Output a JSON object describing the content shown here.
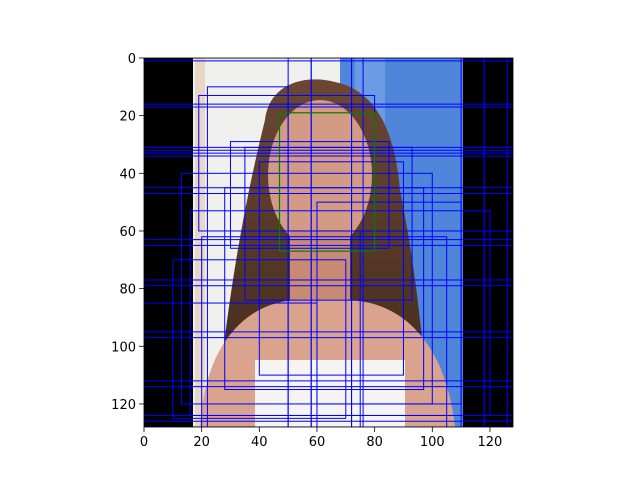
{
  "chart_data": {
    "type": "image",
    "title": "",
    "xlabel": "",
    "ylabel": "",
    "xlim": [
      0,
      128
    ],
    "ylim": [
      128,
      0
    ],
    "y_inverted": true,
    "x_ticks": [
      0,
      20,
      40,
      60,
      80,
      100,
      120
    ],
    "y_ticks": [
      0,
      20,
      40,
      60,
      80,
      100,
      120
    ],
    "grid": false,
    "legend": "none",
    "image": {
      "content": "cropped portrait photo of a woman with long brown hair against a blue and white background, with black padding columns on the left and right",
      "photo_x_range": [
        17,
        110
      ],
      "padding_color": "#000000",
      "background_colors": [
        "#f2f2f2",
        "#4f86d9"
      ],
      "hair_color": "#5a3a26",
      "skin_color": "#d49a84"
    },
    "overlay_boxes": {
      "blue_box_color": "#0000ff",
      "green_box_color": "#008000",
      "green_box": {
        "x": [
          47,
          80
        ],
        "y": [
          19,
          67
        ]
      },
      "blue_boxes": [
        {
          "x": [
            0,
            128
          ],
          "y": [
            0,
            1
          ]
        },
        {
          "x": [
            0,
            128
          ],
          "y": [
            16,
            17
          ]
        },
        {
          "x": [
            0,
            128
          ],
          "y": [
            31,
            33
          ]
        },
        {
          "x": [
            0,
            128
          ],
          "y": [
            32,
            34
          ]
        },
        {
          "x": [
            0,
            128
          ],
          "y": [
            45,
            47
          ]
        },
        {
          "x": [
            0,
            128
          ],
          "y": [
            63,
            65
          ]
        },
        {
          "x": [
            0,
            128
          ],
          "y": [
            77,
            79
          ]
        },
        {
          "x": [
            0,
            128
          ],
          "y": [
            95,
            97
          ]
        },
        {
          "x": [
            0,
            128
          ],
          "y": [
            112,
            114
          ]
        },
        {
          "x": [
            0,
            128
          ],
          "y": [
            124,
            126
          ]
        },
        {
          "x": [
            19,
            80
          ],
          "y": [
            13,
            60
          ]
        },
        {
          "x": [
            30,
            85
          ],
          "y": [
            29,
            66
          ]
        },
        {
          "x": [
            35,
            93
          ],
          "y": [
            31,
            84
          ]
        },
        {
          "x": [
            13,
            100
          ],
          "y": [
            40,
            120
          ]
        },
        {
          "x": [
            28,
            97
          ],
          "y": [
            45,
            115
          ]
        },
        {
          "x": [
            16,
            120
          ],
          "y": [
            53,
            124
          ]
        },
        {
          "x": [
            20,
            105
          ],
          "y": [
            62,
            128
          ]
        },
        {
          "x": [
            40,
            90
          ],
          "y": [
            36,
            110
          ]
        },
        {
          "x": [
            60,
            110
          ],
          "y": [
            50,
            120
          ]
        },
        {
          "x": [
            10,
            70
          ],
          "y": [
            70,
            125
          ]
        },
        {
          "x": [
            75,
            128
          ],
          "y": [
            60,
            128
          ]
        },
        {
          "x": [
            0,
            60
          ],
          "y": [
            85,
            128
          ]
        },
        {
          "x": [
            22,
            50
          ],
          "y": [
            10,
            128
          ]
        },
        {
          "x": [
            50,
            58
          ],
          "y": [
            0,
            128
          ]
        },
        {
          "x": [
            58,
            72
          ],
          "y": [
            0,
            128
          ]
        },
        {
          "x": [
            72,
            76
          ],
          "y": [
            0,
            128
          ]
        },
        {
          "x": [
            110,
            118
          ],
          "y": [
            0,
            128
          ]
        },
        {
          "x": [
            118,
            126
          ],
          "y": [
            0,
            128
          ]
        }
      ]
    }
  }
}
